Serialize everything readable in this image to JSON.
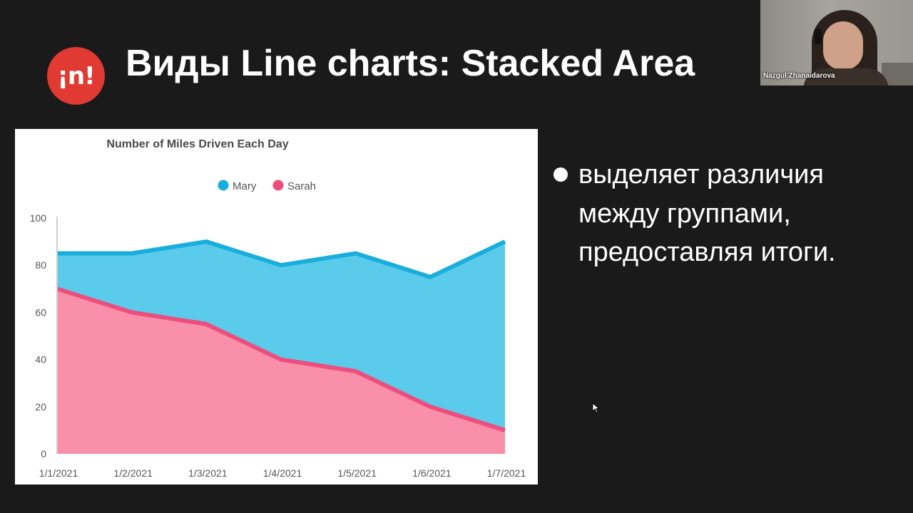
{
  "slide": {
    "logo_text": "¡n!",
    "title": "Виды Line charts: Stacked Area",
    "bullet": "выделяет различия между группами, предоставляя итоги."
  },
  "video": {
    "participant_name": "Nazgul Zhanaidarova"
  },
  "colors": {
    "background": "#1a1a1a",
    "logo_red": "#e03a33",
    "mary_fill": "#5bcbec",
    "mary_line": "#1aaedc",
    "sarah_fill": "#fa8fa9",
    "sarah_line": "#ee4e7d"
  },
  "chart_data": {
    "type": "area",
    "stacked": true,
    "title": "Number of Miles Driven Each Day",
    "x": [
      "1/1/2021",
      "1/2/2021",
      "1/3/2021",
      "1/4/2021",
      "1/5/2021",
      "1/6/2021",
      "1/7/2021"
    ],
    "series": [
      {
        "name": "Mary",
        "values": [
          15,
          25,
          35,
          40,
          50,
          55,
          80
        ]
      },
      {
        "name": "Sarah",
        "values": [
          70,
          60,
          55,
          40,
          35,
          20,
          10
        ]
      }
    ],
    "totals": [
      85,
      85,
      90,
      80,
      85,
      75,
      90
    ],
    "ylim": [
      0,
      100
    ],
    "yticks": [
      0,
      20,
      40,
      60,
      80,
      100
    ],
    "legend": "top-center",
    "grid": false
  }
}
